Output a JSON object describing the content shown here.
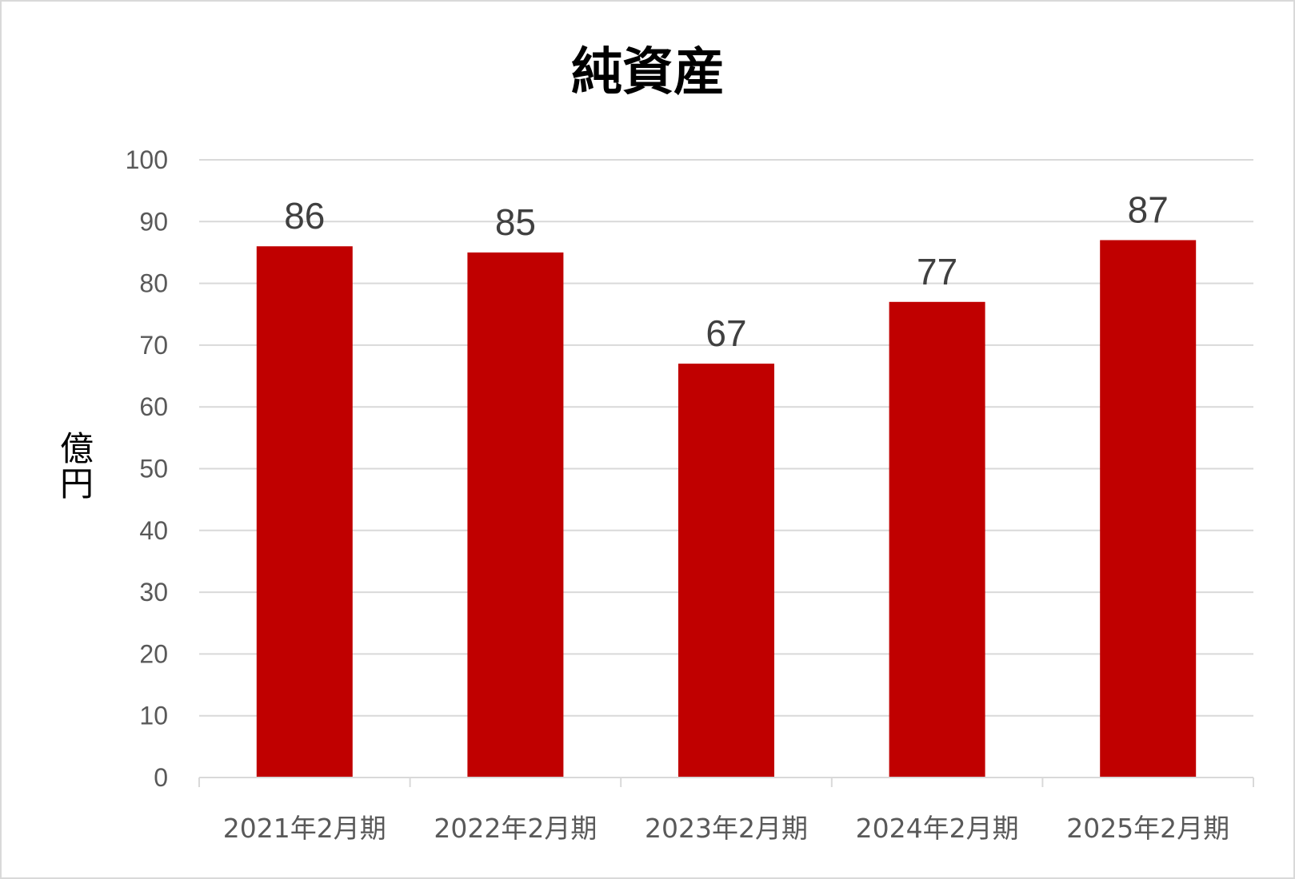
{
  "chart_data": {
    "type": "bar",
    "title": "純資産",
    "ylabel": "億円",
    "xlabel": "",
    "categories": [
      "2021年2月期",
      "2022年2月期",
      "2023年2月期",
      "2024年2月期",
      "2025年2月期"
    ],
    "values": [
      86,
      85,
      67,
      77,
      87
    ],
    "data_labels": [
      "86",
      "85",
      "67",
      "77",
      "87"
    ],
    "ylim": [
      0,
      100
    ],
    "yticks": [
      0,
      10,
      20,
      30,
      40,
      50,
      60,
      70,
      80,
      90,
      100
    ],
    "grid": true,
    "legend": "none",
    "colors": {
      "bar": "#C00000",
      "grid": "#d9d9d9",
      "tick_text": "#595959",
      "data_label": "#404040"
    }
  }
}
